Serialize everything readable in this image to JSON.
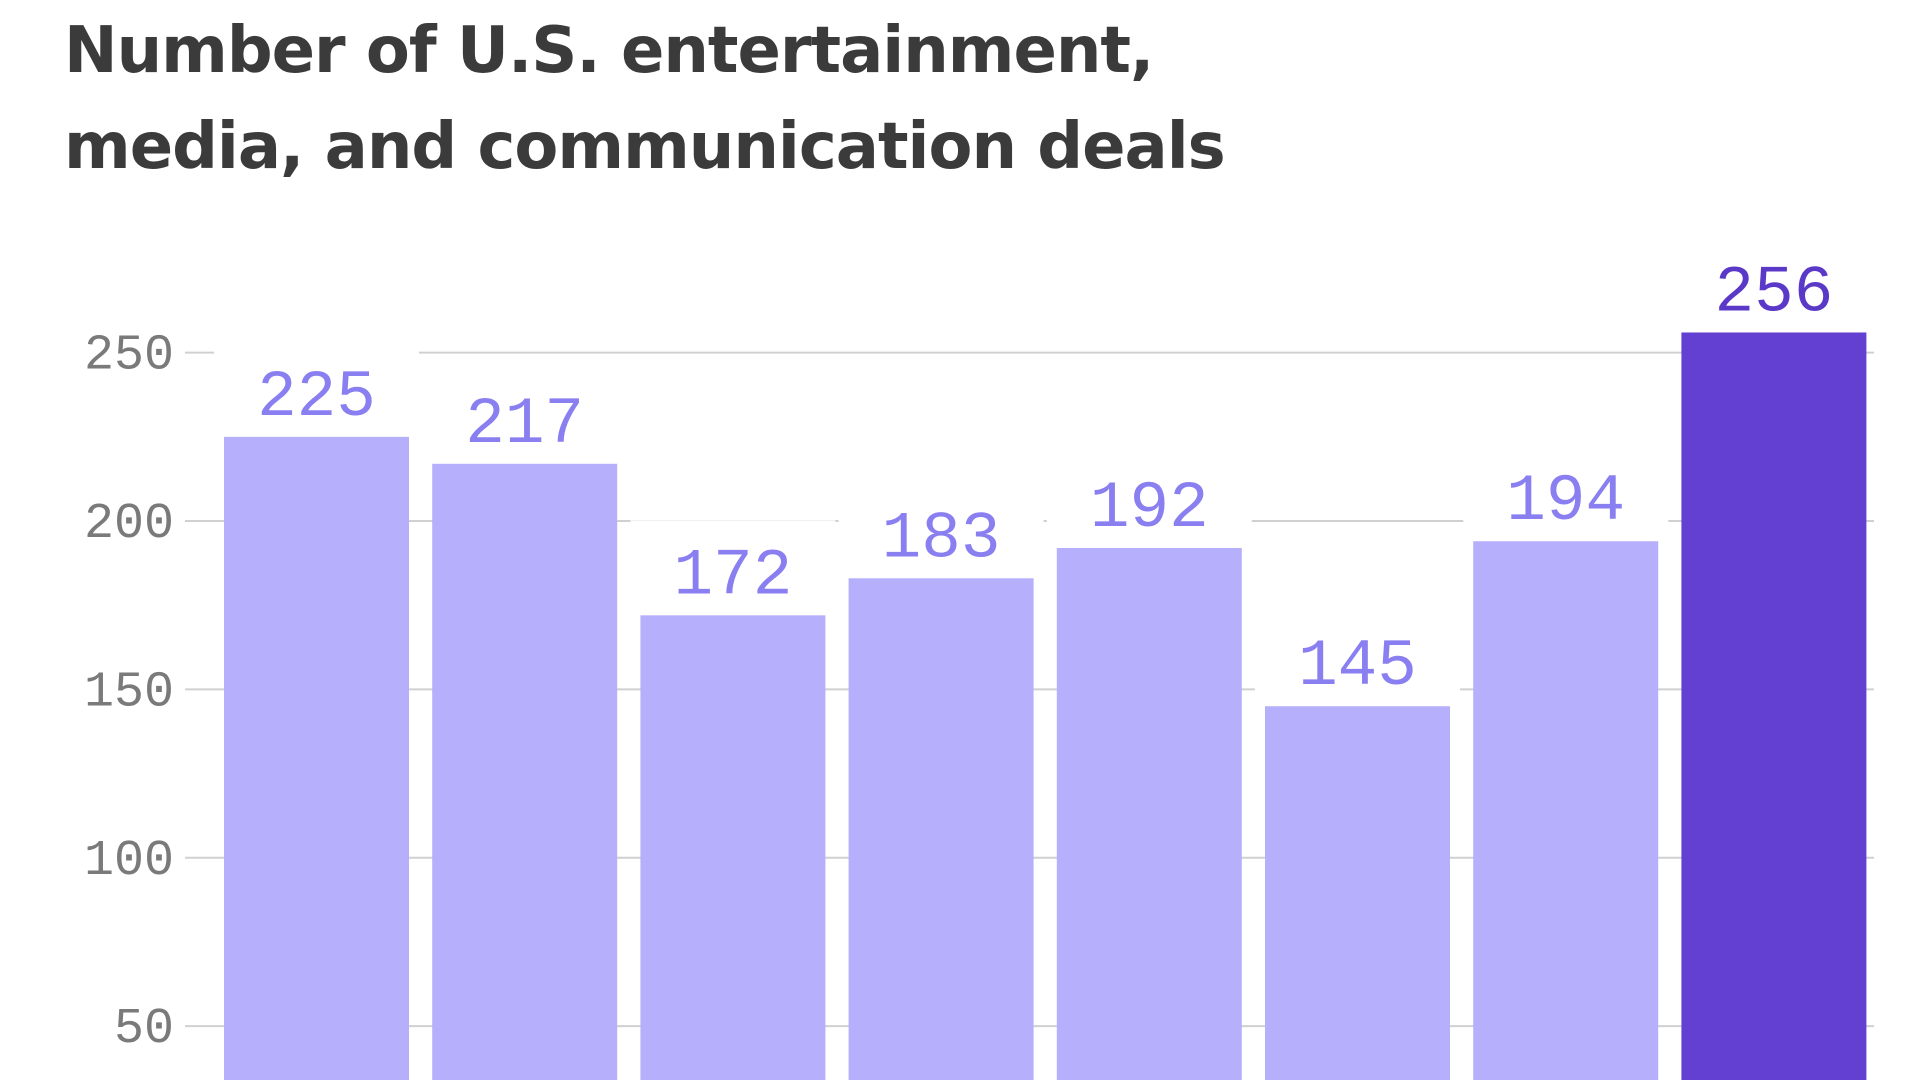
{
  "chart_data": {
    "type": "bar",
    "title": [
      "Number of U.S. entertainment,",
      "media, and communication deals"
    ],
    "categories": [
      null,
      null,
      null,
      null,
      null,
      null,
      null,
      null
    ],
    "values": [
      225,
      217,
      172,
      183,
      192,
      145,
      194,
      256
    ],
    "colors": [
      "#b6b0fc",
      "#b6b0fc",
      "#b6b0fc",
      "#b6b0fc",
      "#b6b0fc",
      "#b6b0fc",
      "#b6b0fc",
      "#6440d2"
    ],
    "label_colors": [
      "#8a7ff0",
      "#8a7ff0",
      "#8a7ff0",
      "#8a7ff0",
      "#8a7ff0",
      "#8a7ff0",
      "#8a7ff0",
      "#5a38c8"
    ],
    "ylim": [
      34,
      260
    ],
    "yticks": [
      50,
      100,
      150,
      200,
      250
    ],
    "grid": true
  }
}
